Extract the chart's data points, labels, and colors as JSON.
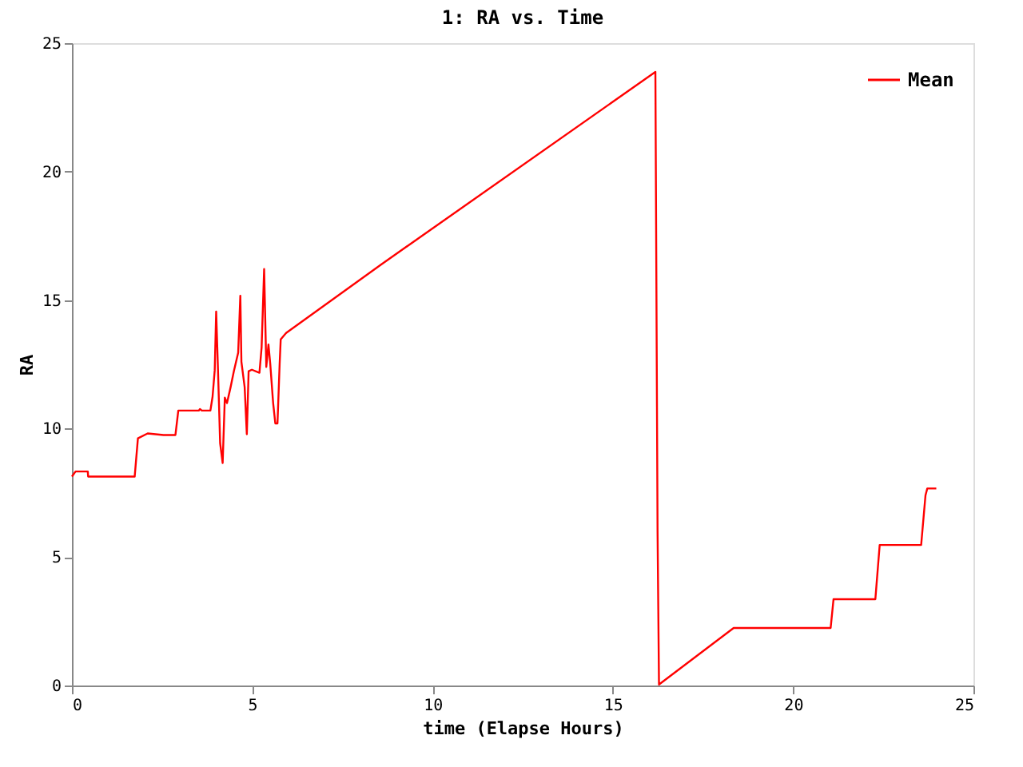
{
  "chart_data": {
    "type": "line",
    "title": "1: RA vs. Time",
    "xlabel": "time (Elapse Hours)",
    "ylabel": "RA",
    "xlim": [
      0,
      25
    ],
    "xticks": [
      0,
      5,
      10,
      15,
      20,
      25
    ],
    "ylim": [
      0,
      25
    ],
    "yticks": [
      0,
      5,
      10,
      15,
      20,
      25
    ],
    "grid": false,
    "legend": "top right",
    "marker": "none",
    "line_style": "solid",
    "series": [
      {
        "name": "Mean",
        "color": "#ff0000",
        "x": [
          0,
          0.1,
          0.44,
          0.45,
          1.74,
          1.83,
          2.1,
          2.54,
          2.87,
          2.95,
          3.52,
          3.55,
          3.6,
          3.84,
          3.9,
          3.96,
          4.0,
          4.05,
          4.11,
          4.18,
          4.24,
          4.3,
          4.4,
          4.49,
          4.61,
          4.67,
          4.7,
          4.79,
          4.85,
          4.9,
          4.99,
          5.2,
          5.26,
          5.33,
          5.39,
          5.45,
          5.5,
          5.58,
          5.64,
          5.7,
          5.76,
          5.79,
          5.94,
          8.57,
          16.18,
          16.2,
          16.24,
          16.28,
          18.35,
          21.04,
          21.12,
          22.28,
          22.4,
          23.55,
          23.67,
          23.72,
          23.97
        ],
        "values": [
          8.13,
          8.33,
          8.33,
          8.13,
          8.13,
          9.62,
          9.81,
          9.75,
          9.75,
          10.7,
          10.7,
          10.76,
          10.7,
          10.7,
          11.24,
          12.27,
          14.55,
          12.3,
          9.43,
          8.66,
          11.2,
          10.99,
          11.61,
          12.23,
          12.95,
          15.17,
          12.6,
          11.61,
          9.78,
          12.23,
          12.29,
          12.17,
          13.16,
          16.21,
          12.4,
          13.27,
          12.51,
          10.99,
          10.2,
          10.2,
          12.51,
          13.47,
          13.72,
          16.38,
          23.88,
          17.93,
          6.01,
          0.04,
          2.24,
          2.24,
          3.36,
          3.36,
          5.47,
          5.47,
          7.4,
          7.67,
          7.67
        ]
      }
    ]
  }
}
